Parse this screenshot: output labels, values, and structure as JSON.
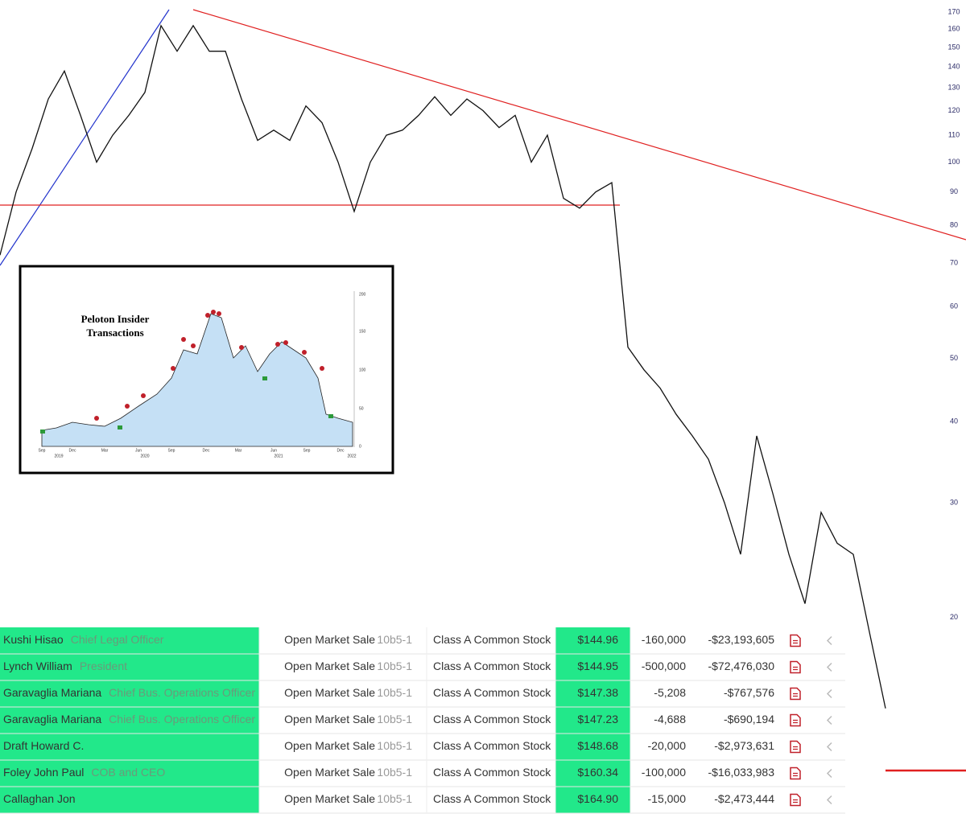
{
  "chart_data": {
    "type": "line",
    "categories": [
      null,
      null,
      null,
      null,
      null,
      null,
      null,
      null,
      null,
      null,
      null,
      null,
      null,
      null,
      null,
      null,
      null,
      null,
      null,
      null,
      null,
      null,
      null,
      null,
      null,
      null,
      null,
      null,
      null,
      null,
      null,
      null,
      null,
      null,
      null,
      null,
      null,
      null,
      null,
      null,
      null,
      null,
      null,
      null,
      null,
      null,
      null,
      null,
      null,
      null,
      null,
      null,
      null,
      null,
      null,
      null
    ],
    "values": [
      72,
      90,
      105,
      125,
      138,
      118,
      100,
      110,
      118,
      128,
      162,
      148,
      162,
      148,
      148,
      125,
      108,
      112,
      108,
      122,
      115,
      100,
      84,
      100,
      110,
      112,
      118,
      126,
      118,
      125,
      120,
      113,
      118,
      100,
      110,
      88,
      85,
      90,
      93,
      52,
      48,
      45,
      41,
      38,
      35,
      30,
      25,
      38,
      31,
      25,
      21,
      29,
      26,
      25,
      19,
      14.5
    ],
    "color": "#111111",
    "log_scale": true,
    "ylim": [
      9.9,
      177.4
    ],
    "yticks": [
      170,
      160,
      150,
      140,
      130,
      120,
      110,
      100,
      90,
      80,
      70,
      60,
      50,
      40,
      30,
      20
    ]
  },
  "inset": {
    "title": "Peloton Insider Transactions",
    "yticks": [
      200,
      150,
      100,
      50,
      0
    ],
    "months": [
      "Sep",
      "Dec",
      "Mar",
      "Jun",
      "Sep",
      "Dec",
      "Mar",
      "Jun",
      "Sep",
      "Dec"
    ],
    "years": [
      "2019",
      "2020",
      "2021",
      "2022"
    ]
  },
  "table": {
    "rows": [
      {
        "name": "Kushi Hisao",
        "role": "Chief Legal Officer",
        "type": "Open Market Sale",
        "plan": "10b5-1",
        "security": "Class A Common Stock",
        "price": "$144.96",
        "shares": "-160,000",
        "value": "-$23,193,605"
      },
      {
        "name": "Lynch William",
        "role": "President",
        "type": "Open Market Sale",
        "plan": "10b5-1",
        "security": "Class A Common Stock",
        "price": "$144.95",
        "shares": "-500,000",
        "value": "-$72,476,030"
      },
      {
        "name": "Garavaglia Mariana",
        "role": "Chief Bus. Operations Officer",
        "type": "Open Market Sale",
        "plan": "10b5-1",
        "security": "Class A Common Stock",
        "price": "$147.38",
        "shares": "-5,208",
        "value": "-$767,576"
      },
      {
        "name": "Garavaglia Mariana",
        "role": "Chief Bus. Operations Officer",
        "type": "Open Market Sale",
        "plan": "10b5-1",
        "security": "Class A Common Stock",
        "price": "$147.23",
        "shares": "-4,688",
        "value": "-$690,194"
      },
      {
        "name": "Draft Howard C.",
        "type": "Open Market Sale",
        "plan": "10b5-1",
        "security": "Class A Common Stock",
        "price": "$148.68",
        "shares": "-20,000",
        "value": "-$2,973,631"
      },
      {
        "name": "Foley John Paul",
        "role": "COB and CEO",
        "type": "Open Market Sale",
        "plan": "10b5-1",
        "security": "Class A Common Stock",
        "price": "$160.34",
        "shares": "-100,000",
        "value": "-$16,033,983"
      },
      {
        "name": "Callaghan Jon",
        "type": "Open Market Sale",
        "plan": "10b5-1",
        "security": "Class A Common Stock",
        "price": "$164.90",
        "shares": "-15,000",
        "value": "-$2,473,444"
      }
    ]
  }
}
